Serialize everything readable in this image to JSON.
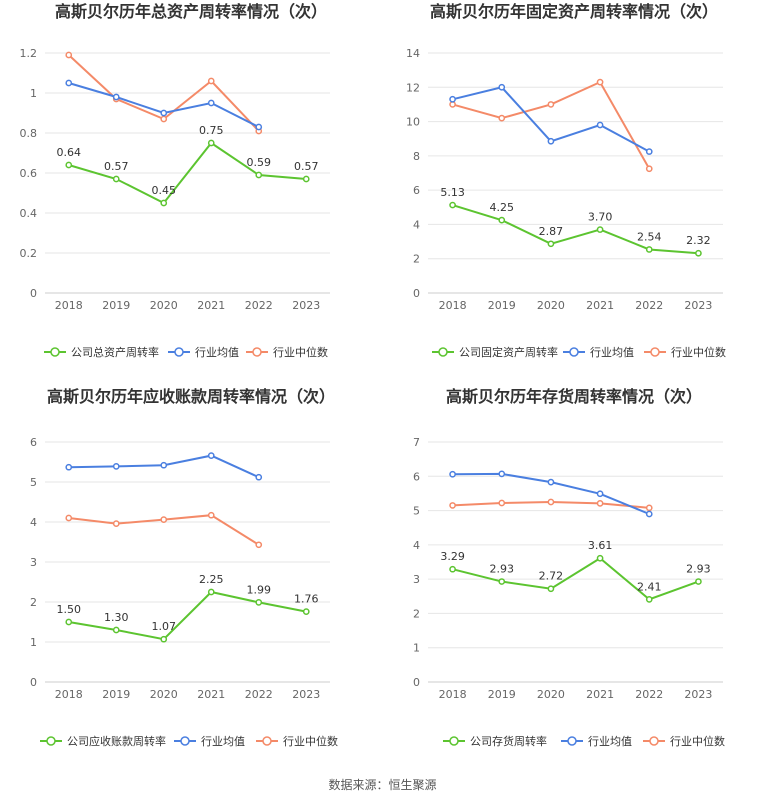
{
  "source": "数据来源：恒生聚源",
  "colors": {
    "company": "#5cc430",
    "industry_avg": "#4a7fe0",
    "industry_median": "#f48a68"
  },
  "legend": {
    "industry_avg": "行业均值",
    "industry_median": "行业中位数"
  },
  "chart_data": [
    {
      "type": "line",
      "title": "高斯贝尔历年总资产周转率情况（次）",
      "categories": [
        "2018",
        "2019",
        "2020",
        "2021",
        "2022",
        "2023"
      ],
      "yticks": [
        "0",
        "0.2",
        "0.4",
        "0.6",
        "0.8",
        "1",
        "1.2"
      ],
      "ylim": [
        0,
        1.2
      ],
      "series": [
        {
          "name": "公司总资产周转率",
          "key": "company",
          "values": [
            0.64,
            0.57,
            0.45,
            0.75,
            0.59,
            0.57
          ],
          "labels": [
            "0.64",
            "0.57",
            "0.45",
            "0.75",
            "0.59",
            "0.57"
          ]
        },
        {
          "name": "行业均值",
          "key": "industry_avg",
          "values": [
            1.05,
            0.98,
            0.9,
            0.95,
            0.83,
            null
          ]
        },
        {
          "name": "行业中位数",
          "key": "industry_median",
          "values": [
            1.19,
            0.97,
            0.87,
            1.06,
            0.81,
            null
          ]
        }
      ]
    },
    {
      "type": "line",
      "title": "高斯贝尔历年固定资产周转率情况（次）",
      "categories": [
        "2018",
        "2019",
        "2020",
        "2021",
        "2022",
        "2023"
      ],
      "yticks": [
        "0",
        "2",
        "4",
        "6",
        "8",
        "10",
        "12",
        "14"
      ],
      "ylim": [
        0,
        14
      ],
      "series": [
        {
          "name": "公司固定资产周转率",
          "key": "company",
          "values": [
            5.13,
            4.25,
            2.87,
            3.7,
            2.54,
            2.32
          ],
          "labels": [
            "5.13",
            "4.25",
            "2.87",
            "3.70",
            "2.54",
            "2.32"
          ]
        },
        {
          "name": "行业均值",
          "key": "industry_avg",
          "values": [
            11.3,
            12.0,
            8.85,
            9.8,
            8.25,
            null
          ]
        },
        {
          "name": "行业中位数",
          "key": "industry_median",
          "values": [
            11.0,
            10.2,
            11.0,
            12.3,
            7.25,
            null
          ]
        }
      ]
    },
    {
      "type": "line",
      "title": "高斯贝尔历年应收账款周转率情况（次）",
      "categories": [
        "2018",
        "2019",
        "2020",
        "2021",
        "2022",
        "2023"
      ],
      "yticks": [
        "0",
        "1",
        "2",
        "3",
        "4",
        "5",
        "6"
      ],
      "ylim": [
        0,
        6
      ],
      "series": [
        {
          "name": "公司应收账款周转率",
          "key": "company",
          "values": [
            1.5,
            1.3,
            1.07,
            2.25,
            1.99,
            1.76
          ],
          "labels": [
            "1.50",
            "1.30",
            "1.07",
            "2.25",
            "1.99",
            "1.76"
          ]
        },
        {
          "name": "行业均值",
          "key": "industry_avg",
          "values": [
            5.37,
            5.39,
            5.42,
            5.66,
            5.12,
            null
          ]
        },
        {
          "name": "行业中位数",
          "key": "industry_median",
          "values": [
            4.1,
            3.96,
            4.06,
            4.17,
            3.43,
            null
          ]
        }
      ]
    },
    {
      "type": "line",
      "title": "高斯贝尔历年存货周转率情况（次）",
      "categories": [
        "2018",
        "2019",
        "2020",
        "2021",
        "2022",
        "2023"
      ],
      "yticks": [
        "0",
        "1",
        "2",
        "3",
        "4",
        "5",
        "6",
        "7"
      ],
      "ylim": [
        0,
        7
      ],
      "series": [
        {
          "name": "公司存货周转率",
          "key": "company",
          "values": [
            3.29,
            2.93,
            2.72,
            3.61,
            2.41,
            2.93
          ],
          "labels": [
            "3.29",
            "2.93",
            "2.72",
            "3.61",
            "2.41",
            "2.93"
          ]
        },
        {
          "name": "行业均值",
          "key": "industry_avg",
          "values": [
            6.06,
            6.07,
            5.83,
            5.49,
            4.9,
            null
          ]
        },
        {
          "name": "行业中位数",
          "key": "industry_median",
          "values": [
            5.15,
            5.22,
            5.25,
            5.21,
            5.08,
            null
          ]
        }
      ]
    }
  ]
}
